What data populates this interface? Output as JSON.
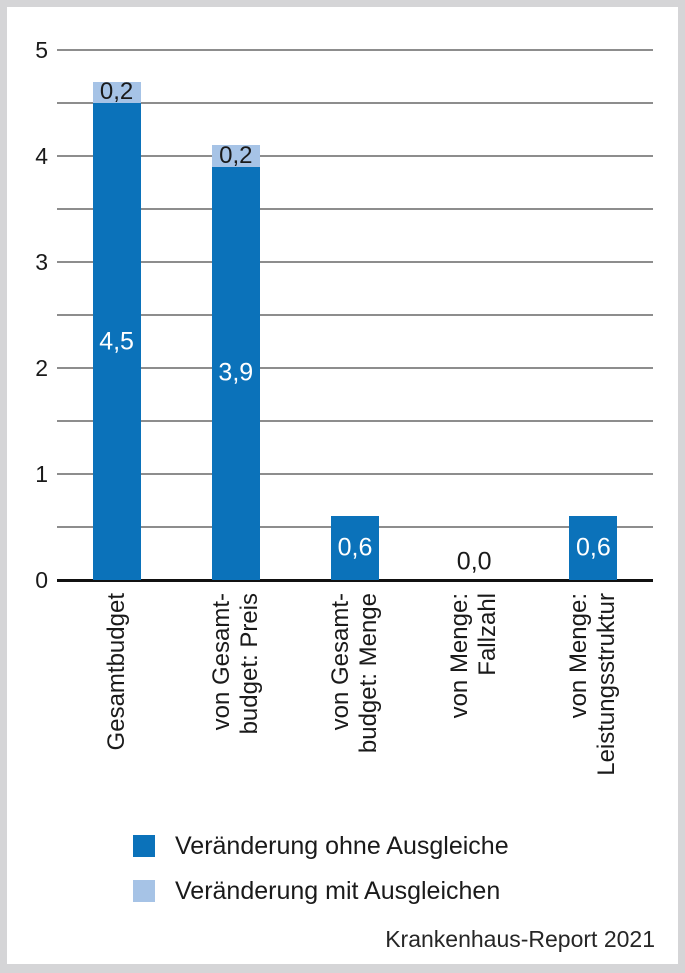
{
  "chart_data": {
    "type": "bar",
    "stacked": true,
    "title": "",
    "xlabel": "",
    "ylabel": "",
    "ylim": [
      0,
      5
    ],
    "yticks": [
      "0",
      "1",
      "2",
      "3",
      "4",
      "5"
    ],
    "gridline_step": 0.5,
    "grid": true,
    "legend_position": "bottom",
    "categories": [
      [
        "Gesamtbudget"
      ],
      [
        "von Gesamt-",
        "budget: Preis"
      ],
      [
        "von Gesamt-",
        "budget: Menge"
      ],
      [
        "von Menge:",
        "Fallzahl"
      ],
      [
        "von Menge:",
        "Leistungsstruktur"
      ]
    ],
    "series": [
      {
        "name": "Veränderung ohne Ausgleiche",
        "color": "#0b72ba",
        "values": [
          4.5,
          3.9,
          0.6,
          0.0,
          0.6
        ],
        "value_labels": [
          "4,5",
          "3,9",
          "0,6",
          "0,0",
          "0,6"
        ]
      },
      {
        "name": "Veränderung mit Ausgleichen",
        "color": "#a6c3e6",
        "values": [
          0.2,
          0.2,
          0,
          0,
          0
        ],
        "value_labels": [
          "0,2",
          "0,2",
          "",
          "",
          ""
        ]
      }
    ]
  },
  "legend": {
    "items": [
      {
        "label": "Veränderung ohne Ausgleiche",
        "color": "#0b72ba"
      },
      {
        "label": "Veränderung mit Ausgleichen",
        "color": "#a6c3e6"
      }
    ]
  },
  "footer": {
    "source": "Krankenhaus-Report 2021"
  },
  "colors": {
    "bar_primary": "#0b72ba",
    "bar_secondary": "#a6c3e6",
    "gridline": "#8d8d8d",
    "axis": "#111111",
    "text": "#1a1a1a",
    "label_inside_bar": "#ffffff",
    "frame": "#d5d5d7",
    "background": "#ffffff"
  }
}
